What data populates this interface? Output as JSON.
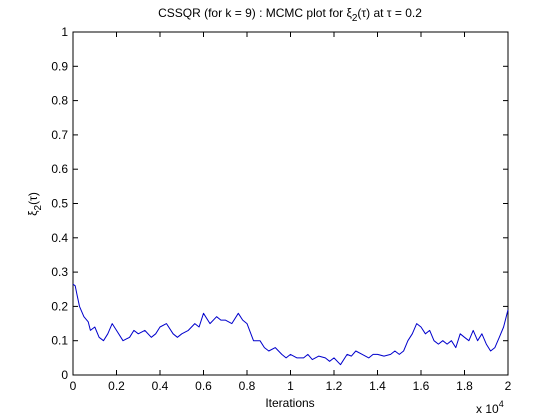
{
  "chart_data": {
    "type": "line",
    "title_parts": {
      "before_xi": "CSSQR (for k = 9) : MCMC plot for ",
      "xi": "ξ",
      "xi_sub": "2",
      "paren": "(τ)",
      "after": " at τ = 0.2"
    },
    "xlabel": "Iterations",
    "ylabel_parts": {
      "xi": "ξ",
      "sub": "2",
      "paren": "(τ)"
    },
    "x_multiplier_label": {
      "base": "x 10",
      "exp": "4"
    },
    "xlim": [
      0,
      20000
    ],
    "ylim": [
      0,
      1
    ],
    "x_ticks": [
      0,
      2000,
      4000,
      6000,
      8000,
      10000,
      12000,
      14000,
      16000,
      18000,
      20000
    ],
    "x_tick_labels": [
      "0",
      "0.2",
      "0.4",
      "0.6",
      "0.8",
      "1",
      "1.2",
      "1.4",
      "1.6",
      "1.8",
      "2"
    ],
    "y_ticks": [
      0,
      0.1,
      0.2,
      0.3,
      0.4,
      0.5,
      0.6,
      0.7,
      0.8,
      0.9,
      1
    ],
    "y_tick_labels": [
      "0",
      "0.1",
      "0.2",
      "0.3",
      "0.4",
      "0.5",
      "0.6",
      "0.7",
      "0.8",
      "0.9",
      "1"
    ],
    "grid": false,
    "line_color": "#0000cc",
    "series": [
      {
        "x": [
          0,
          100,
          200,
          300,
          500,
          700,
          800,
          1000,
          1200,
          1400,
          1600,
          1800,
          2000,
          2300,
          2600,
          2800,
          3000,
          3300,
          3600,
          3800,
          4000,
          4300,
          4600,
          4800,
          5000,
          5300,
          5600,
          5800,
          6000,
          6300,
          6600,
          6800,
          7000,
          7300,
          7600,
          7800,
          8000,
          8300,
          8600,
          8800,
          9000,
          9300,
          9600,
          9800,
          10000,
          10300,
          10600,
          10800,
          11000,
          11300,
          11600,
          11800,
          12000,
          12300,
          12600,
          12800,
          13000,
          13300,
          13600,
          13800,
          14000,
          14300,
          14600,
          14800,
          15000,
          15200,
          15400,
          15600,
          15800,
          16000,
          16200,
          16400,
          16600,
          16800,
          17000,
          17200,
          17400,
          17600,
          17800,
          18000,
          18200,
          18400,
          18600,
          18800,
          19000,
          19200,
          19400,
          19600,
          19800,
          20000
        ],
        "y": [
          0.265,
          0.26,
          0.23,
          0.2,
          0.17,
          0.155,
          0.13,
          0.14,
          0.11,
          0.1,
          0.12,
          0.15,
          0.13,
          0.1,
          0.11,
          0.13,
          0.12,
          0.13,
          0.11,
          0.12,
          0.14,
          0.15,
          0.12,
          0.11,
          0.12,
          0.13,
          0.15,
          0.14,
          0.18,
          0.15,
          0.17,
          0.16,
          0.16,
          0.15,
          0.18,
          0.16,
          0.15,
          0.1,
          0.1,
          0.08,
          0.07,
          0.08,
          0.06,
          0.05,
          0.06,
          0.05,
          0.05,
          0.06,
          0.045,
          0.055,
          0.05,
          0.04,
          0.05,
          0.03,
          0.06,
          0.055,
          0.07,
          0.06,
          0.05,
          0.06,
          0.06,
          0.055,
          0.06,
          0.07,
          0.06,
          0.07,
          0.1,
          0.12,
          0.15,
          0.14,
          0.12,
          0.13,
          0.1,
          0.09,
          0.1,
          0.09,
          0.1,
          0.08,
          0.12,
          0.11,
          0.1,
          0.13,
          0.1,
          0.12,
          0.09,
          0.07,
          0.08,
          0.11,
          0.14,
          0.19
        ]
      }
    ]
  }
}
